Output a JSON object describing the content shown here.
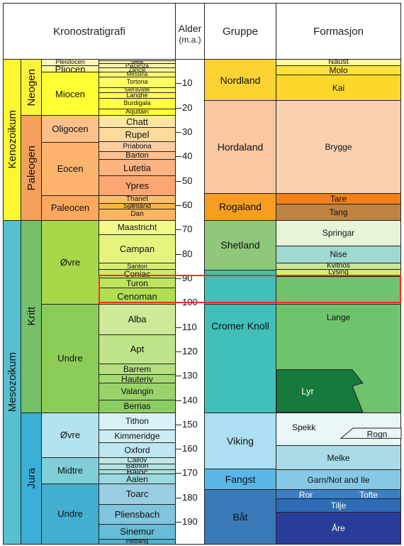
{
  "headers": {
    "chrono": "Kronostratigrafi",
    "age_top": "Alder",
    "age_unit": "(m.a.)",
    "group": "Gruppe",
    "formation": "Formasjon"
  },
  "age_range": [
    0,
    199
  ],
  "ticks": [
    10,
    20,
    30,
    40,
    50,
    60,
    70,
    80,
    90,
    100,
    110,
    120,
    130,
    140,
    150,
    160,
    170,
    180,
    190
  ],
  "colors": {
    "kenozoikum": "#fcf730",
    "neogen": "#fcf43b",
    "paleogen": "#f6a05c",
    "mesozoikum": "#55c0d0",
    "kritt": "#77c06a",
    "jura": "#3ab0d6",
    "red_outline": "#ff2a2a"
  },
  "eras": [
    {
      "name": "Kenozoikum",
      "top": 0,
      "bottom": 66,
      "color": "#fcf730"
    },
    {
      "name": "Mesozoikum",
      "top": 66,
      "bottom": 199,
      "color": "#55c0d0"
    }
  ],
  "periods": [
    {
      "name": "Neogen",
      "top": 0,
      "bottom": 23,
      "color": "#fcf43b"
    },
    {
      "name": "Paleogen",
      "top": 23,
      "bottom": 66,
      "color": "#f6a05c"
    },
    {
      "name": "Kritt",
      "top": 66,
      "bottom": 145,
      "color": "#77c06a"
    },
    {
      "name": "Jura",
      "top": 145,
      "bottom": 199,
      "color": "#3ab0d6"
    }
  ],
  "epochs": [
    {
      "name": "Pleistocen",
      "top": 0,
      "bottom": 2.6,
      "color": "#fff7b8",
      "small": true
    },
    {
      "name": "Pliocen",
      "top": 2.6,
      "bottom": 5.3,
      "color": "#fff99a"
    },
    {
      "name": "Miocen",
      "top": 5.3,
      "bottom": 23,
      "color": "#ffff33"
    },
    {
      "name": "Oligocen",
      "top": 23,
      "bottom": 34,
      "color": "#fdc08a"
    },
    {
      "name": "Eocen",
      "top": 34,
      "bottom": 56,
      "color": "#fdb46c"
    },
    {
      "name": "Paleocen",
      "top": 56,
      "bottom": 66,
      "color": "#fda75f"
    },
    {
      "name": "Øvre",
      "top": 66,
      "bottom": 100.5,
      "color": "#a6d84a"
    },
    {
      "name": "Undre",
      "top": 100.5,
      "bottom": 145,
      "color": "#8ccd57"
    },
    {
      "name": "Øvre",
      "top": 145,
      "bottom": 163.5,
      "color": "#b3e3ee"
    },
    {
      "name": "Midtre",
      "top": 163.5,
      "bottom": 174.1,
      "color": "#80cfd8"
    },
    {
      "name": "Undre",
      "top": 174.1,
      "bottom": 199,
      "color": "#42aed0"
    }
  ],
  "stages": [
    {
      "name": "Gela",
      "top": 0.5,
      "bottom": 1.8,
      "color": "#fff2ae",
      "fs": 8
    },
    {
      "name": "Piacenza",
      "top": 1.8,
      "bottom": 3.6,
      "color": "#fff2ae",
      "fs": 8
    },
    {
      "name": "Zancle",
      "top": 3.6,
      "bottom": 5.3,
      "color": "#ffff99",
      "fs": 8
    },
    {
      "name": "Messina",
      "top": 5.3,
      "bottom": 7.2,
      "color": "#ffff73",
      "fs": 8
    },
    {
      "name": "Tortona",
      "top": 7.2,
      "bottom": 11.6,
      "color": "#ffff66",
      "fs": 9
    },
    {
      "name": "Serravalle",
      "top": 11.6,
      "bottom": 13.8,
      "color": "#ffff59",
      "fs": 8
    },
    {
      "name": "Langhe",
      "top": 13.8,
      "bottom": 16,
      "color": "#ffff4d",
      "fs": 9
    },
    {
      "name": "Burdigala",
      "top": 16,
      "bottom": 20.4,
      "color": "#ffff41",
      "fs": 9
    },
    {
      "name": "Aquitain",
      "top": 20.4,
      "bottom": 23,
      "color": "#ffff33",
      "fs": 9
    },
    {
      "name": "Chatt",
      "top": 23,
      "bottom": 28.1,
      "color": "#fee6aa",
      "fs": 13
    },
    {
      "name": "Rupel",
      "top": 28.1,
      "bottom": 33.9,
      "color": "#fed99a",
      "fs": 13
    },
    {
      "name": "Priabona",
      "top": 33.9,
      "bottom": 37.8,
      "color": "#fdcda1",
      "fs": 10
    },
    {
      "name": "Barton",
      "top": 37.8,
      "bottom": 41.2,
      "color": "#fdc091",
      "fs": 11
    },
    {
      "name": "Lutetia",
      "top": 41.2,
      "bottom": 47.8,
      "color": "#fcb482",
      "fs": 13
    },
    {
      "name": "Ypres",
      "top": 47.8,
      "bottom": 56,
      "color": "#fca773",
      "fs": 13
    },
    {
      "name": "Thanet",
      "top": 56,
      "bottom": 59.2,
      "color": "#fdbf6f",
      "fs": 10
    },
    {
      "name": "Sjælland",
      "top": 59.2,
      "bottom": 61.6,
      "color": "#feb342",
      "fs": 10
    },
    {
      "name": "Dan",
      "top": 61.6,
      "bottom": 66,
      "color": "#fdb462",
      "fs": 10
    },
    {
      "name": "Maastricht",
      "top": 66,
      "bottom": 72.1,
      "color": "#f2fa8c",
      "fs": 12
    },
    {
      "name": "Campan",
      "top": 72.1,
      "bottom": 83.6,
      "color": "#e6f47f",
      "fs": 13
    },
    {
      "name": "Santon",
      "top": 83.6,
      "bottom": 86.3,
      "color": "#d9ef74",
      "fs": 9
    },
    {
      "name": "Coniac",
      "top": 86.3,
      "bottom": 89.8,
      "color": "#ccea67",
      "fs": 12
    },
    {
      "name": "Turon",
      "top": 89.8,
      "bottom": 93.9,
      "color": "#bfe35d",
      "fs": 12
    },
    {
      "name": "Cenoman",
      "top": 93.9,
      "bottom": 100.5,
      "color": "#b3de53",
      "fs": 13
    },
    {
      "name": "Alba",
      "top": 100.5,
      "bottom": 113,
      "color": "#ccea97",
      "fs": 13
    },
    {
      "name": "Apt",
      "top": 113,
      "bottom": 125,
      "color": "#bfe48a",
      "fs": 13
    },
    {
      "name": "Barrem",
      "top": 125,
      "bottom": 129.4,
      "color": "#b3df7f",
      "fs": 12
    },
    {
      "name": "Hauteriv",
      "top": 129.4,
      "bottom": 132.9,
      "color": "#a6d975",
      "fs": 12
    },
    {
      "name": "Valangin",
      "top": 132.9,
      "bottom": 139.8,
      "color": "#99d36a",
      "fs": 12
    },
    {
      "name": "Berrias",
      "top": 139.8,
      "bottom": 145,
      "color": "#8ccd60",
      "fs": 12
    },
    {
      "name": "Tithon",
      "top": 145,
      "bottom": 152.1,
      "color": "#d9f1f7",
      "fs": 12
    },
    {
      "name": "Kimmeridge",
      "top": 152.1,
      "bottom": 157.3,
      "color": "#ccecf4",
      "fs": 12
    },
    {
      "name": "Oxford",
      "top": 157.3,
      "bottom": 163.5,
      "color": "#bfe7f1",
      "fs": 12
    },
    {
      "name": "Callov",
      "top": 163.5,
      "bottom": 166.1,
      "color": "#bfe7e5",
      "fs": 10
    },
    {
      "name": "Bathon",
      "top": 166.1,
      "bottom": 168.3,
      "color": "#b3e2e3",
      "fs": 10
    },
    {
      "name": "Bajoc",
      "top": 168.3,
      "bottom": 170.3,
      "color": "#a6dde0",
      "fs": 12
    },
    {
      "name": "Aalen",
      "top": 170.3,
      "bottom": 174.1,
      "color": "#9ad9dd",
      "fs": 12
    },
    {
      "name": "Toarc",
      "top": 174.1,
      "bottom": 182.7,
      "color": "#99cee3",
      "fs": 13
    },
    {
      "name": "Pliensbach",
      "top": 182.7,
      "bottom": 190.8,
      "color": "#80c5dd",
      "fs": 13
    },
    {
      "name": "Sinemur",
      "top": 190.8,
      "bottom": 196.9,
      "color": "#67bcd8",
      "fs": 13
    },
    {
      "name": "Hettang",
      "top": 196.9,
      "bottom": 199,
      "color": "#4eb3d3",
      "fs": 9
    }
  ],
  "groups": [
    {
      "name": "Nordland",
      "top": 0,
      "bottom": 17,
      "color": "#fcd333",
      "fs": 14
    },
    {
      "name": "Hordaland",
      "top": 17,
      "bottom": 55,
      "color": "#f9c8a0",
      "fs": 14
    },
    {
      "name": "Rogaland",
      "top": 55,
      "bottom": 66,
      "color": "#f69d22",
      "fs": 14
    },
    {
      "name": "Shetland",
      "top": 66,
      "bottom": 86.5,
      "color": "#8fc87a",
      "fs": 14
    },
    {
      "name": "",
      "top": 86.5,
      "bottom": 100.5,
      "color": "#3fc0b8",
      "fs": 14
    },
    {
      "name": "Cromer Knoll",
      "top": 100.5,
      "bottom": 145,
      "color": "#3fc0b8",
      "fs": 14
    },
    {
      "name": "Viking",
      "top": 145,
      "bottom": 168,
      "color": "#addff2",
      "fs": 14
    },
    {
      "name": "Fangst",
      "top": 168,
      "bottom": 176.5,
      "color": "#5bb6e8",
      "fs": 14
    },
    {
      "name": "Båt",
      "top": 176.5,
      "bottom": 199,
      "color": "#3a7ab8",
      "fs": 14
    }
  ],
  "formations": [
    {
      "name": "Naust",
      "top": 0,
      "bottom": 2.6,
      "color": "#fff9a0",
      "fs": 11
    },
    {
      "name": "Molo",
      "top": 2.6,
      "bottom": 6.5,
      "color": "#ffe23a",
      "fs": 12
    },
    {
      "name": "Kai",
      "top": 6.5,
      "bottom": 17,
      "color": "#fdd82a",
      "fs": 12
    },
    {
      "name": "Brygge",
      "top": 17,
      "bottom": 55,
      "color": "#fad0b0",
      "fs": 12
    },
    {
      "name": "Tare",
      "top": 55,
      "bottom": 59.5,
      "color": "#f47f16",
      "fs": 12
    },
    {
      "name": "Tang",
      "top": 59.5,
      "bottom": 66,
      "color": "#c08442",
      "fs": 12
    },
    {
      "name": "Springar",
      "top": 66,
      "bottom": 76.5,
      "color": "#e6f4d8",
      "fs": 12
    },
    {
      "name": "Nise",
      "top": 76.5,
      "bottom": 83.5,
      "color": "#9fd9cf",
      "fs": 12
    },
    {
      "name": "Kvitnos",
      "top": 83.5,
      "bottom": 86.2,
      "color": "#c8e59a",
      "fs": 10
    },
    {
      "name": "Lysing",
      "top": 86.2,
      "bottom": 89.2,
      "color": "#ddeb6a",
      "fs": 10
    },
    {
      "name": "",
      "top": 89.2,
      "bottom": 100.5,
      "color": "#6fc36c",
      "fs": 12
    },
    {
      "name": "Lange",
      "top": 100.5,
      "bottom": 145,
      "color": "#6fc36c",
      "fs": 12
    },
    {
      "name": "Spekk",
      "top": 145,
      "bottom": 158.5,
      "color": "#eaf5f8",
      "fs": 12
    },
    {
      "name": "Melke",
      "top": 158.5,
      "bottom": 168.5,
      "color": "#a9dbe9",
      "fs": 12
    },
    {
      "name": "Garn/Not and Ile",
      "top": 168.5,
      "bottom": 176.5,
      "color": "#86c8e6",
      "fs": 12
    },
    {
      "name": "",
      "top": 176.5,
      "bottom": 180.3,
      "color": "#3d7ec3",
      "fs": 12
    },
    {
      "name": "Tilje",
      "top": 180.3,
      "bottom": 186,
      "color": "#2e6cb6",
      "fs": 12
    },
    {
      "name": "Åre",
      "top": 186,
      "bottom": 199,
      "color": "#2a3c9a",
      "fs": 12
    }
  ],
  "lyr": {
    "name": "Lyr",
    "color": "#157a3c"
  },
  "rogn": {
    "name": "Rogn",
    "color": "#eaf5f8"
  },
  "bat_labels": {
    "ror": "Ror",
    "tofte": "Tofte"
  },
  "highlight": {
    "top": 88.6,
    "bottom": 100.2
  }
}
